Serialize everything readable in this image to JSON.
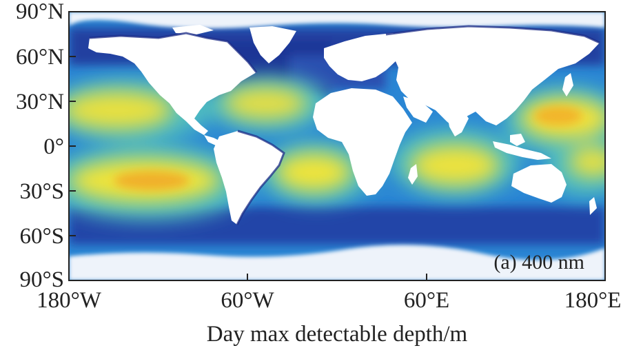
{
  "map": {
    "panel_label": "(a) 400 nm",
    "colorbar_label": "Day max detectable depth/m",
    "lat_ticks": [
      "90°N",
      "60°N",
      "30°N",
      "0°",
      "30°S",
      "60°S",
      "90°S"
    ],
    "lon_ticks": [
      "180°W",
      "60°W",
      "60°E",
      "180°E"
    ],
    "colors": {
      "land": "#ffffff",
      "deep_ocean": "#1e2f8c",
      "mid_ocean": "#2a7fd0",
      "shelf_blue": "#3aa7e0",
      "teal": "#5fc3b5",
      "green": "#9fd56a",
      "yellow": "#f1e43a",
      "orange": "#f0b02a",
      "ice": "#e8f0f8"
    }
  }
}
